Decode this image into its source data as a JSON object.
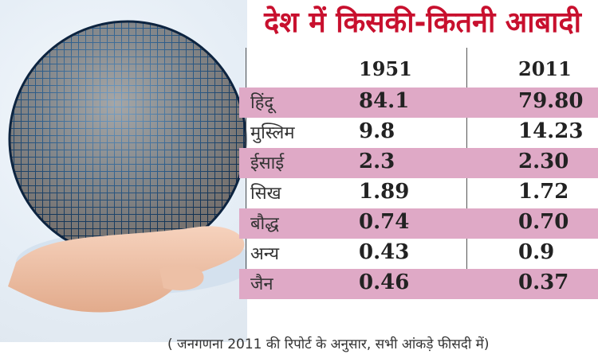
{
  "title": "देश में किसकी-कितनी आबादी",
  "header": {
    "year1": "1951",
    "year2": "2011"
  },
  "chart_data": {
    "type": "table",
    "title": "देश में किसकी-कितनी आबादी",
    "columns": [
      "1951",
      "2011"
    ],
    "rows": [
      {
        "label": "हिंदू",
        "values": [
          "84.1",
          "79.80"
        ]
      },
      {
        "label": "मुस्लिम",
        "values": [
          "9.8",
          "14.23"
        ]
      },
      {
        "label": "ईसाई",
        "values": [
          "2.3",
          "2.30"
        ]
      },
      {
        "label": "सिख",
        "values": [
          "1.89",
          "1.72"
        ]
      },
      {
        "label": "बौद्ध",
        "values": [
          "0.74",
          "0.70"
        ]
      },
      {
        "label": "अन्य",
        "values": [
          "0.43",
          "0.9"
        ]
      },
      {
        "label": "जैन",
        "values": [
          "0.46",
          "0.37"
        ]
      }
    ],
    "note": "( जनगणना 2011 की रिपोर्ट के अनुसार, सभी आंकड़े फीसदी में)"
  },
  "colors": {
    "title": "#c8102e",
    "row_band": "#dfa9c6"
  }
}
